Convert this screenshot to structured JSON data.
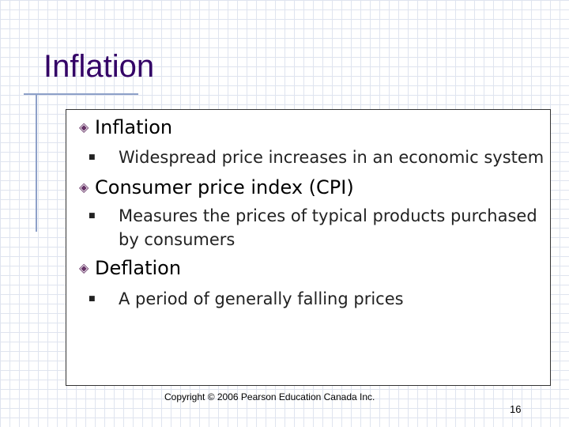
{
  "slide": {
    "title": "Inflation",
    "items": [
      {
        "heading": "Inflation",
        "bullets": [
          "Widespread price increases in an economic system"
        ]
      },
      {
        "heading": "Consumer price index (CPI)",
        "bullets": [
          "Measures the prices of typical products purchased by consumers"
        ]
      },
      {
        "heading": "Deflation",
        "bullets": [
          "A period of generally falling prices"
        ]
      }
    ],
    "footer": "Copyright © 2006 Pearson Education Canada Inc.",
    "page_number": "16"
  }
}
